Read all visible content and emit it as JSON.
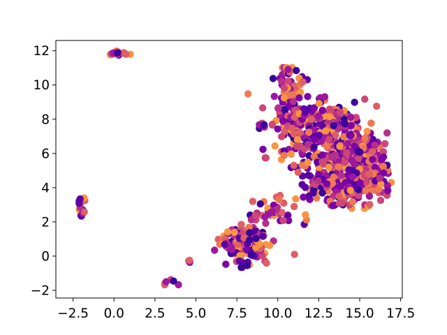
{
  "chart_data": {
    "type": "scatter",
    "title": "",
    "xlabel": "",
    "ylabel": "",
    "xlim": [
      -3.55,
      17.6
    ],
    "ylim": [
      -2.45,
      12.6
    ],
    "x_ticks": [
      -2.5,
      0.0,
      2.5,
      5.0,
      7.5,
      10.0,
      12.5,
      15.0,
      17.5
    ],
    "x_tick_labels": [
      "−2.5",
      "0.0",
      "2.5",
      "5.0",
      "7.5",
      "10.0",
      "12.5",
      "15.0",
      "17.5"
    ],
    "y_ticks": [
      -2,
      0,
      2,
      4,
      6,
      8,
      10,
      12
    ],
    "y_tick_labels": [
      "−2",
      "0",
      "2",
      "4",
      "6",
      "8",
      "10",
      "12"
    ],
    "grid": false,
    "legend": "none",
    "colormap": "plasma",
    "colors": [
      "#3b049a",
      "#5c01a6",
      "#7e03a8",
      "#9c179e",
      "#b52f8c",
      "#cc4778",
      "#de5f65",
      "#ed7953",
      "#f89540"
    ],
    "clusters": [
      {
        "center": [
          0.3,
          11.85
        ],
        "spread": [
          0.25,
          0.08
        ],
        "count": 18
      },
      {
        "center": [
          -2.0,
          3.15
        ],
        "spread": [
          0.15,
          0.25
        ],
        "count": 12
      },
      {
        "center": [
          -1.9,
          2.45
        ],
        "spread": [
          0.08,
          0.12
        ],
        "count": 5
      },
      {
        "center": [
          3.5,
          -1.55
        ],
        "spread": [
          0.25,
          0.1
        ],
        "count": 6
      },
      {
        "center": [
          4.6,
          -0.3
        ],
        "spread": [
          0.05,
          0.05
        ],
        "count": 3
      },
      {
        "center": [
          8.2,
          9.5
        ],
        "spread": [
          0.03,
          0.03
        ],
        "count": 1
      },
      {
        "center": [
          11.0,
          0.1
        ],
        "spread": [
          0.03,
          0.03
        ],
        "count": 1
      },
      {
        "center": [
          8.0,
          0.8
        ],
        "spread": [
          0.75,
          0.55
        ],
        "count": 150
      },
      {
        "center": [
          7.8,
          -0.4
        ],
        "spread": [
          0.15,
          0.12
        ],
        "count": 6
      },
      {
        "center": [
          9.9,
          2.5
        ],
        "spread": [
          0.7,
          0.4
        ],
        "count": 40
      },
      {
        "center": [
          10.8,
          9.8
        ],
        "spread": [
          0.35,
          0.7
        ],
        "count": 45
      },
      {
        "center": [
          10.7,
          10.9
        ],
        "spread": [
          0.15,
          0.15
        ],
        "count": 8
      },
      {
        "center": [
          10.8,
          8.0
        ],
        "spread": [
          0.6,
          0.45
        ],
        "count": 40
      },
      {
        "center": [
          9.0,
          7.6
        ],
        "spread": [
          0.15,
          0.06
        ],
        "count": 6
      },
      {
        "center": [
          12.3,
          7.0
        ],
        "spread": [
          1.2,
          1.1
        ],
        "count": 220
      },
      {
        "center": [
          14.6,
          5.8
        ],
        "spread": [
          1.0,
          1.1
        ],
        "count": 250
      },
      {
        "center": [
          15.4,
          4.6
        ],
        "spread": [
          0.8,
          0.55
        ],
        "count": 90
      },
      {
        "center": [
          13.3,
          4.2
        ],
        "spread": [
          1.0,
          0.6
        ],
        "count": 90
      },
      {
        "center": [
          14.1,
          3.2
        ],
        "spread": [
          0.4,
          0.2
        ],
        "count": 14
      },
      {
        "center": [
          12.8,
          8.4
        ],
        "spread": [
          0.7,
          0.25
        ],
        "count": 35
      }
    ]
  }
}
